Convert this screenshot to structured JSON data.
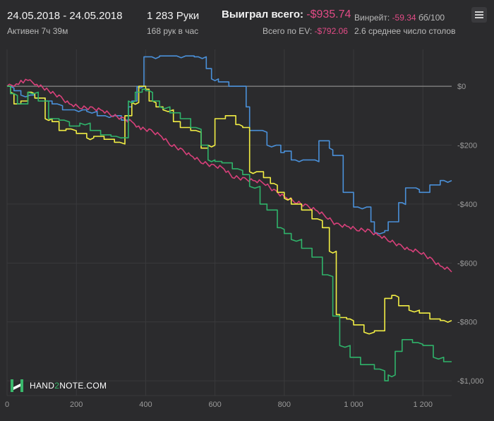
{
  "header": {
    "date_range": "24.05.2018 - 24.05.2018",
    "active_time": "Активен 7ч 39м",
    "hands": "1 283 Руки",
    "hands_per_hour": "168 рук в час",
    "won_label": "Выиграл всего:",
    "won_sign": "-",
    "won_value": "$935.74",
    "ev_label": "Всего по EV:",
    "ev_sign": "-",
    "ev_value": "$792.06",
    "winrate_label": "Винрейт:",
    "winrate_value": "-59.34",
    "winrate_unit": "бб/100",
    "avg_tables": "2.6 среднее число столов"
  },
  "logo": {
    "text_a": "HAND",
    "text_b": "2",
    "text_c": "NOTE.COM"
  },
  "colors": {
    "background": "#2b2b2d",
    "grid": "#3a3a3c",
    "zero_line": "#8a8a8a",
    "axis_text": "#9a9a9a",
    "blue": "#4a90d9",
    "pink": "#d8407a",
    "yellow": "#f2ee44",
    "green": "#2fb36a",
    "negative": "#e24b86"
  },
  "chart_data": {
    "type": "line",
    "xlim": [
      0,
      1283
    ],
    "ylim": [
      -1050,
      125
    ],
    "x_ticks": [
      0,
      200,
      400,
      600,
      800,
      1000,
      1200
    ],
    "x_tick_labels": [
      "0",
      "200",
      "400",
      "600",
      "800",
      "1 000",
      "1 200"
    ],
    "y_ticks": [
      0,
      -200,
      -400,
      -600,
      -800,
      -1000
    ],
    "y_tick_labels": [
      "$0",
      "-$200",
      "-$400",
      "-$600",
      "-$800",
      "-$1,000"
    ],
    "grid": true,
    "series": [
      {
        "color": "#4a90d9",
        "step": true,
        "x": [
          0,
          20,
          40,
          80,
          110,
          130,
          160,
          230,
          260,
          330,
          350,
          360,
          375,
          395,
          440,
          540,
          575,
          590,
          610,
          640,
          690,
          700,
          750,
          790,
          800,
          820,
          900,
          930,
          940,
          970,
          1000,
          1050,
          1060,
          1090,
          1100,
          1130,
          1150,
          1180,
          1190,
          1220,
          1250,
          1283
        ],
        "y": [
          0,
          -15,
          -30,
          -40,
          -50,
          -60,
          -80,
          -85,
          -100,
          -115,
          -70,
          -50,
          0,
          100,
          103,
          100,
          60,
          25,
          15,
          0,
          -70,
          -150,
          -200,
          -225,
          -220,
          -250,
          -185,
          -210,
          -235,
          -360,
          -410,
          -460,
          -495,
          -490,
          -460,
          -395,
          -345,
          -345,
          -360,
          -335,
          -320,
          -320
        ]
      },
      {
        "color": "#d8407a",
        "step": false,
        "x": [
          0,
          20,
          40,
          60,
          80,
          120,
          150,
          180,
          210,
          240,
          270,
          300,
          330,
          360,
          380,
          410,
          440,
          470,
          500,
          530,
          560,
          590,
          620,
          650,
          680,
          710,
          740,
          770,
          800,
          830,
          860,
          890,
          920,
          950,
          980,
          1010,
          1040,
          1070,
          1100,
          1130,
          1160,
          1190,
          1220,
          1250,
          1283
        ],
        "y": [
          0,
          5,
          15,
          20,
          10,
          -15,
          -35,
          -60,
          -70,
          -75,
          -80,
          -95,
          -110,
          -120,
          -140,
          -150,
          -165,
          -195,
          -215,
          -235,
          -255,
          -270,
          -275,
          -305,
          -315,
          -320,
          -325,
          -355,
          -375,
          -390,
          -405,
          -420,
          -440,
          -470,
          -475,
          -485,
          -490,
          -505,
          -520,
          -540,
          -555,
          -560,
          -585,
          -610,
          -625
        ]
      },
      {
        "color": "#f2ee44",
        "step": true,
        "x": [
          0,
          10,
          20,
          40,
          60,
          80,
          110,
          130,
          150,
          170,
          200,
          230,
          250,
          280,
          310,
          340,
          360,
          380,
          400,
          410,
          430,
          450,
          480,
          500,
          530,
          560,
          580,
          600,
          630,
          660,
          680,
          700,
          720,
          740,
          760,
          780,
          800,
          820,
          850,
          880,
          910,
          930,
          950,
          960,
          980,
          1000,
          1030,
          1060,
          1090,
          1110,
          1130,
          1160,
          1190,
          1220,
          1250,
          1283
        ],
        "y": [
          0,
          -20,
          -60,
          -50,
          -20,
          -40,
          -110,
          -120,
          -150,
          -145,
          -160,
          -175,
          -170,
          -180,
          -190,
          -100,
          -55,
          0,
          -10,
          -50,
          -70,
          -80,
          -120,
          -140,
          -150,
          -210,
          -200,
          -110,
          -100,
          -130,
          -140,
          -290,
          -290,
          -310,
          -330,
          -360,
          -380,
          -400,
          -420,
          -450,
          -480,
          -560,
          -775,
          -785,
          -790,
          -810,
          -835,
          -830,
          -720,
          -710,
          -745,
          -760,
          -770,
          -790,
          -795,
          -795
        ]
      },
      {
        "color": "#2fb36a",
        "step": true,
        "x": [
          0,
          10,
          30,
          60,
          90,
          120,
          150,
          180,
          210,
          240,
          270,
          300,
          330,
          350,
          370,
          390,
          400,
          420,
          440,
          470,
          500,
          530,
          560,
          580,
          600,
          620,
          650,
          680,
          700,
          730,
          750,
          780,
          800,
          820,
          850,
          880,
          910,
          940,
          960,
          990,
          1020,
          1060,
          1090,
          1100,
          1120,
          1140,
          1170,
          1200,
          1230,
          1260,
          1283
        ],
        "y": [
          0,
          -25,
          -60,
          -20,
          -50,
          -110,
          -115,
          -135,
          -125,
          -150,
          -165,
          -170,
          -175,
          -50,
          -20,
          -10,
          -15,
          -50,
          -70,
          -90,
          -110,
          -140,
          -200,
          -250,
          -255,
          -260,
          -280,
          -300,
          -340,
          -400,
          -420,
          -480,
          -500,
          -520,
          -550,
          -580,
          -640,
          -780,
          -880,
          -920,
          -945,
          -960,
          -1000,
          -980,
          -900,
          -860,
          -870,
          -880,
          -920,
          -935,
          -935
        ]
      }
    ]
  }
}
